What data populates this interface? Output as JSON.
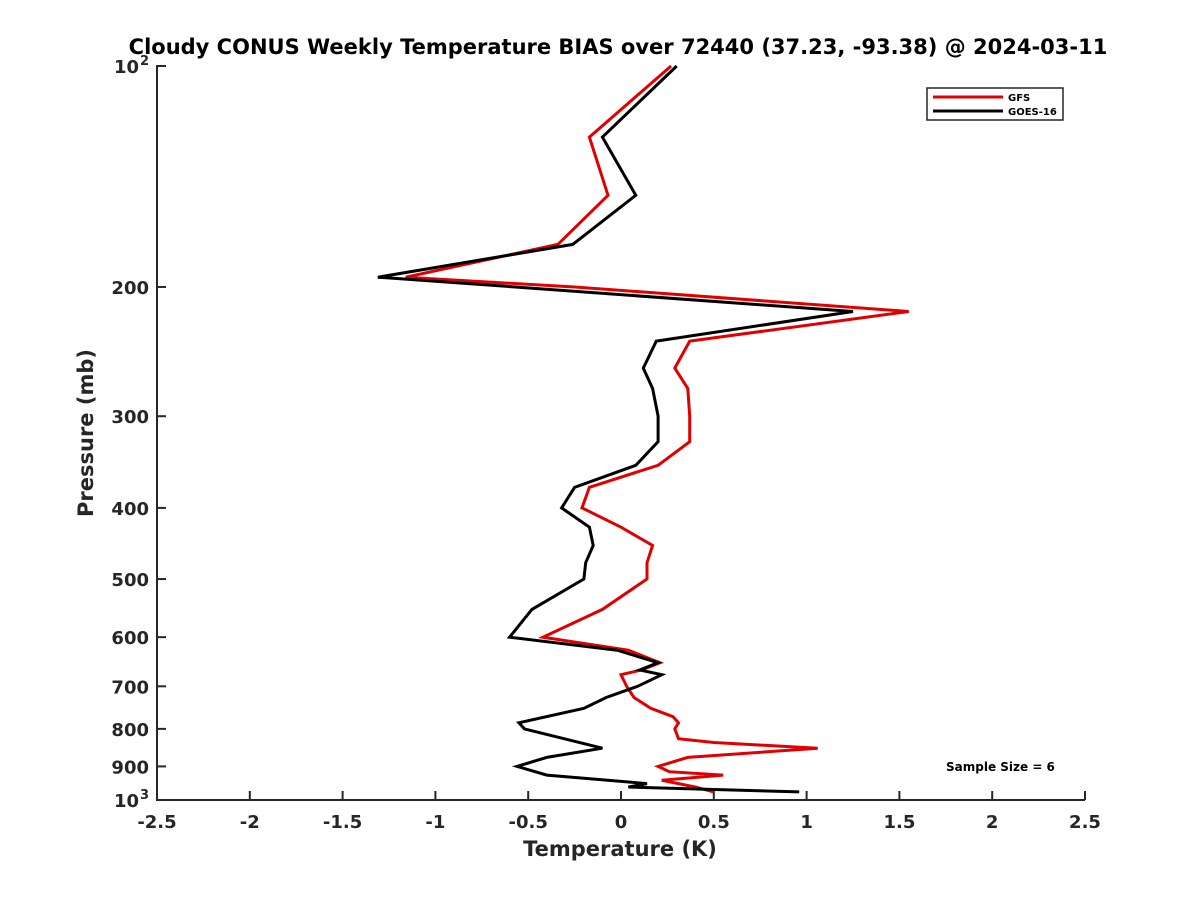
{
  "colors": {
    "gfs": "#e00000",
    "goes": "#000000",
    "axis": "#262626"
  },
  "chart_data": {
    "type": "line",
    "title": "Cloudy CONUS Weekly Temperature BIAS over 72440 (37.23, -93.38) @ 2024-03-11",
    "xlabel": "Temperature (K)",
    "ylabel": "Pressure (mb)",
    "xlim": [
      -2.5,
      2.5
    ],
    "ylim": [
      100,
      1000
    ],
    "y_scale": "log",
    "y_reversed": true,
    "grid": false,
    "legend_position": "top-right",
    "x_ticks": [
      {
        "value": -2.5,
        "label": "-2.5"
      },
      {
        "value": -2,
        "label": "-2"
      },
      {
        "value": -1.5,
        "label": "-1.5"
      },
      {
        "value": -1,
        "label": "-1"
      },
      {
        "value": -0.5,
        "label": "-0.5"
      },
      {
        "value": 0,
        "label": "0"
      },
      {
        "value": 0.5,
        "label": "0.5"
      },
      {
        "value": 1,
        "label": "1"
      },
      {
        "value": 1.5,
        "label": "1.5"
      },
      {
        "value": 2,
        "label": "2"
      },
      {
        "value": 2.5,
        "label": "2.5"
      }
    ],
    "y_ticks": [
      {
        "value": 100,
        "label": "10",
        "sup": "2"
      },
      {
        "value": 200,
        "label": "200"
      },
      {
        "value": 300,
        "label": "300"
      },
      {
        "value": 400,
        "label": "400"
      },
      {
        "value": 500,
        "label": "500"
      },
      {
        "value": 600,
        "label": "600"
      },
      {
        "value": 700,
        "label": "700"
      },
      {
        "value": 800,
        "label": "800"
      },
      {
        "value": 900,
        "label": "900"
      },
      {
        "value": 1000,
        "label": "10",
        "sup": "3"
      }
    ],
    "series": [
      {
        "name": "GFS",
        "color": "#e00000",
        "points": [
          [
            0.27,
            100
          ],
          [
            -0.17,
            125
          ],
          [
            -0.07,
            150
          ],
          [
            -0.34,
            175
          ],
          [
            -1.16,
            194
          ],
          [
            -0.25,
            200
          ],
          [
            1.55,
            216
          ],
          [
            0.37,
            237
          ],
          [
            0.29,
            258
          ],
          [
            0.36,
            275
          ],
          [
            0.37,
            300
          ],
          [
            0.37,
            325
          ],
          [
            0.2,
            350
          ],
          [
            -0.17,
            375
          ],
          [
            -0.21,
            400
          ],
          [
            0.0,
            425
          ],
          [
            0.17,
            450
          ],
          [
            0.14,
            475
          ],
          [
            0.14,
            500
          ],
          [
            -0.1,
            550
          ],
          [
            -0.42,
            600
          ],
          [
            0.04,
            625
          ],
          [
            0.21,
            650
          ],
          [
            0.11,
            665
          ],
          [
            0.0,
            675
          ],
          [
            0.03,
            700
          ],
          [
            0.07,
            725
          ],
          [
            0.16,
            750
          ],
          [
            0.28,
            770
          ],
          [
            0.31,
            785
          ],
          [
            0.29,
            800
          ],
          [
            0.31,
            825
          ],
          [
            0.5,
            835
          ],
          [
            1.06,
            850
          ],
          [
            0.36,
            875
          ],
          [
            0.2,
            900
          ],
          [
            0.26,
            915
          ],
          [
            0.55,
            925
          ],
          [
            0.22,
            940
          ],
          [
            0.4,
            960
          ],
          [
            0.5,
            975
          ]
        ]
      },
      {
        "name": "GOES-16",
        "color": "#000000",
        "points": [
          [
            0.3,
            100
          ],
          [
            -0.1,
            125
          ],
          [
            0.08,
            150
          ],
          [
            -0.26,
            175
          ],
          [
            -1.31,
            194
          ],
          [
            -0.57,
            200
          ],
          [
            1.25,
            216
          ],
          [
            0.19,
            237
          ],
          [
            0.12,
            258
          ],
          [
            0.17,
            275
          ],
          [
            0.2,
            300
          ],
          [
            0.2,
            325
          ],
          [
            0.08,
            350
          ],
          [
            -0.25,
            375
          ],
          [
            -0.32,
            400
          ],
          [
            -0.17,
            425
          ],
          [
            -0.15,
            450
          ],
          [
            -0.19,
            475
          ],
          [
            -0.2,
            500
          ],
          [
            -0.48,
            550
          ],
          [
            -0.6,
            600
          ],
          [
            -0.02,
            625
          ],
          [
            0.2,
            650
          ],
          [
            0.1,
            665
          ],
          [
            0.22,
            675
          ],
          [
            0.09,
            700
          ],
          [
            -0.08,
            725
          ],
          [
            -0.2,
            750
          ],
          [
            -0.55,
            785
          ],
          [
            -0.52,
            800
          ],
          [
            -0.1,
            850
          ],
          [
            -0.4,
            875
          ],
          [
            -0.56,
            900
          ],
          [
            -0.4,
            925
          ],
          [
            0.14,
            950
          ],
          [
            0.04,
            960
          ],
          [
            0.96,
            975
          ]
        ]
      }
    ],
    "annotation": "Sample Size = 6"
  }
}
